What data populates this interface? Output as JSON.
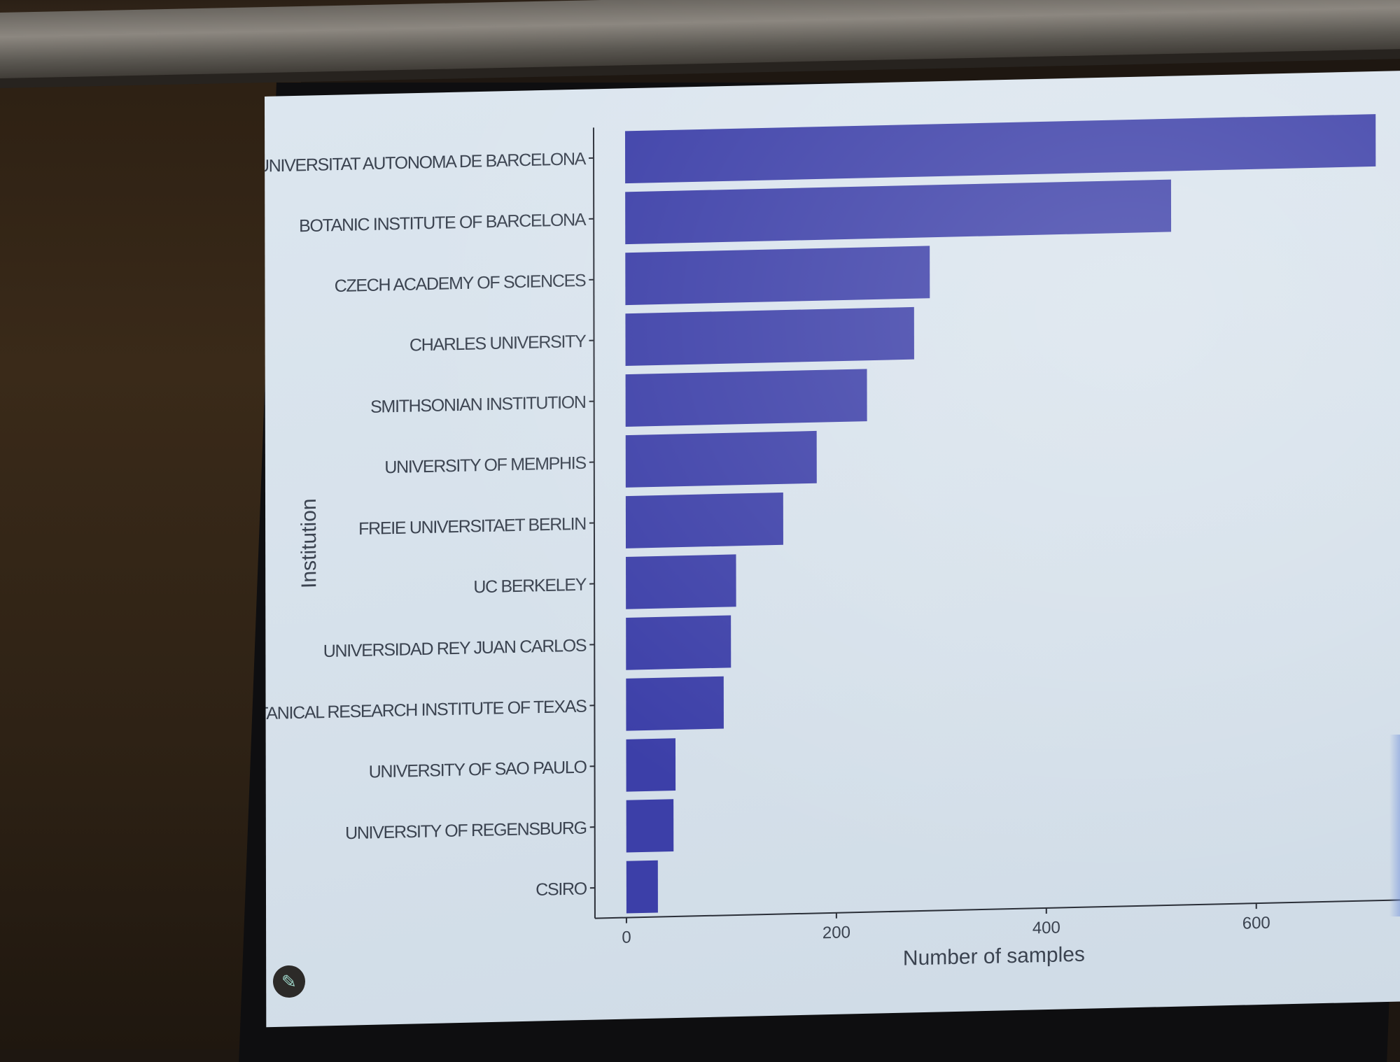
{
  "chart_data": {
    "type": "bar",
    "orientation": "horizontal",
    "title": "",
    "xlabel": "Number of samples",
    "ylabel": "Institution",
    "categories": [
      "UNIVERSITAT AUTONOMA DE BARCELONA",
      "BOTANIC INSTITUTE OF BARCELONA",
      "CZECH ACADEMY OF SCIENCES",
      "CHARLES UNIVERSITY",
      "SMITHSONIAN INSTITUTION",
      "UNIVERSITY OF MEMPHIS",
      "FREIE UNIVERSITAET BERLIN",
      "UC BERKELEY",
      "UNIVERSIDAD REY JUAN CARLOS",
      "BOTANICAL RESEARCH INSTITUTE OF TEXAS",
      "UNIVERSITY OF SAO PAULO",
      "UNIVERSITY OF REGENSBURG",
      "CSIRO"
    ],
    "values": [
      715,
      520,
      290,
      275,
      230,
      182,
      150,
      105,
      100,
      93,
      47,
      45,
      30
    ],
    "x_ticks": [
      0,
      200,
      400,
      600
    ],
    "xlim": [
      -30,
      750
    ],
    "bar_color": "#3c3fa8",
    "grid": false
  },
  "colors": {
    "slide_background": "#d8e3ec",
    "axis_text": "#3b4350",
    "bar": "#3c3fa8"
  },
  "icons": {
    "edit_button": "pencil-icon"
  }
}
